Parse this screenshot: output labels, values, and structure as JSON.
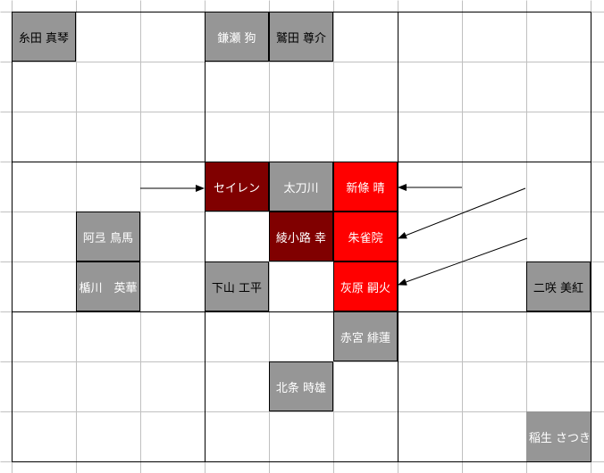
{
  "colors": {
    "grey": "#969696",
    "dark_red": "#800000",
    "red": "#ff0000",
    "gridline": "#c0c0c0",
    "border": "#000000"
  },
  "cells": [
    {
      "name": "糸田 真琴",
      "fill": "grey",
      "text_color": "black"
    },
    {
      "name": "鎌瀬 狗",
      "fill": "grey",
      "text_color": "white"
    },
    {
      "name": "鷲田 尊介",
      "fill": "grey",
      "text_color": "black"
    },
    {
      "name": "セイレン",
      "fill": "dark_red",
      "text_color": "white"
    },
    {
      "name": "太刀川",
      "fill": "grey",
      "text_color": "white"
    },
    {
      "name": "新條 晴",
      "fill": "red",
      "text_color": "white"
    },
    {
      "name": "阿弖 鳥馬",
      "fill": "grey",
      "text_color": "white"
    },
    {
      "name": "綾小路 幸",
      "fill": "dark_red",
      "text_color": "white"
    },
    {
      "name": "朱雀院",
      "fill": "red",
      "text_color": "white"
    },
    {
      "name": "楯川　英華",
      "fill": "grey",
      "text_color": "white"
    },
    {
      "name": "下山 工平",
      "fill": "grey",
      "text_color": "black"
    },
    {
      "name": "灰原 嗣火",
      "fill": "red",
      "text_color": "white"
    },
    {
      "name": "二咲 美紅",
      "fill": "grey",
      "text_color": "black"
    },
    {
      "name": "赤宮 緋蓮",
      "fill": "grey",
      "text_color": "white"
    },
    {
      "name": "北条 時雄",
      "fill": "grey",
      "text_color": "white"
    },
    {
      "name": "稲生 さつき",
      "fill": "grey",
      "text_color": "white"
    }
  ]
}
